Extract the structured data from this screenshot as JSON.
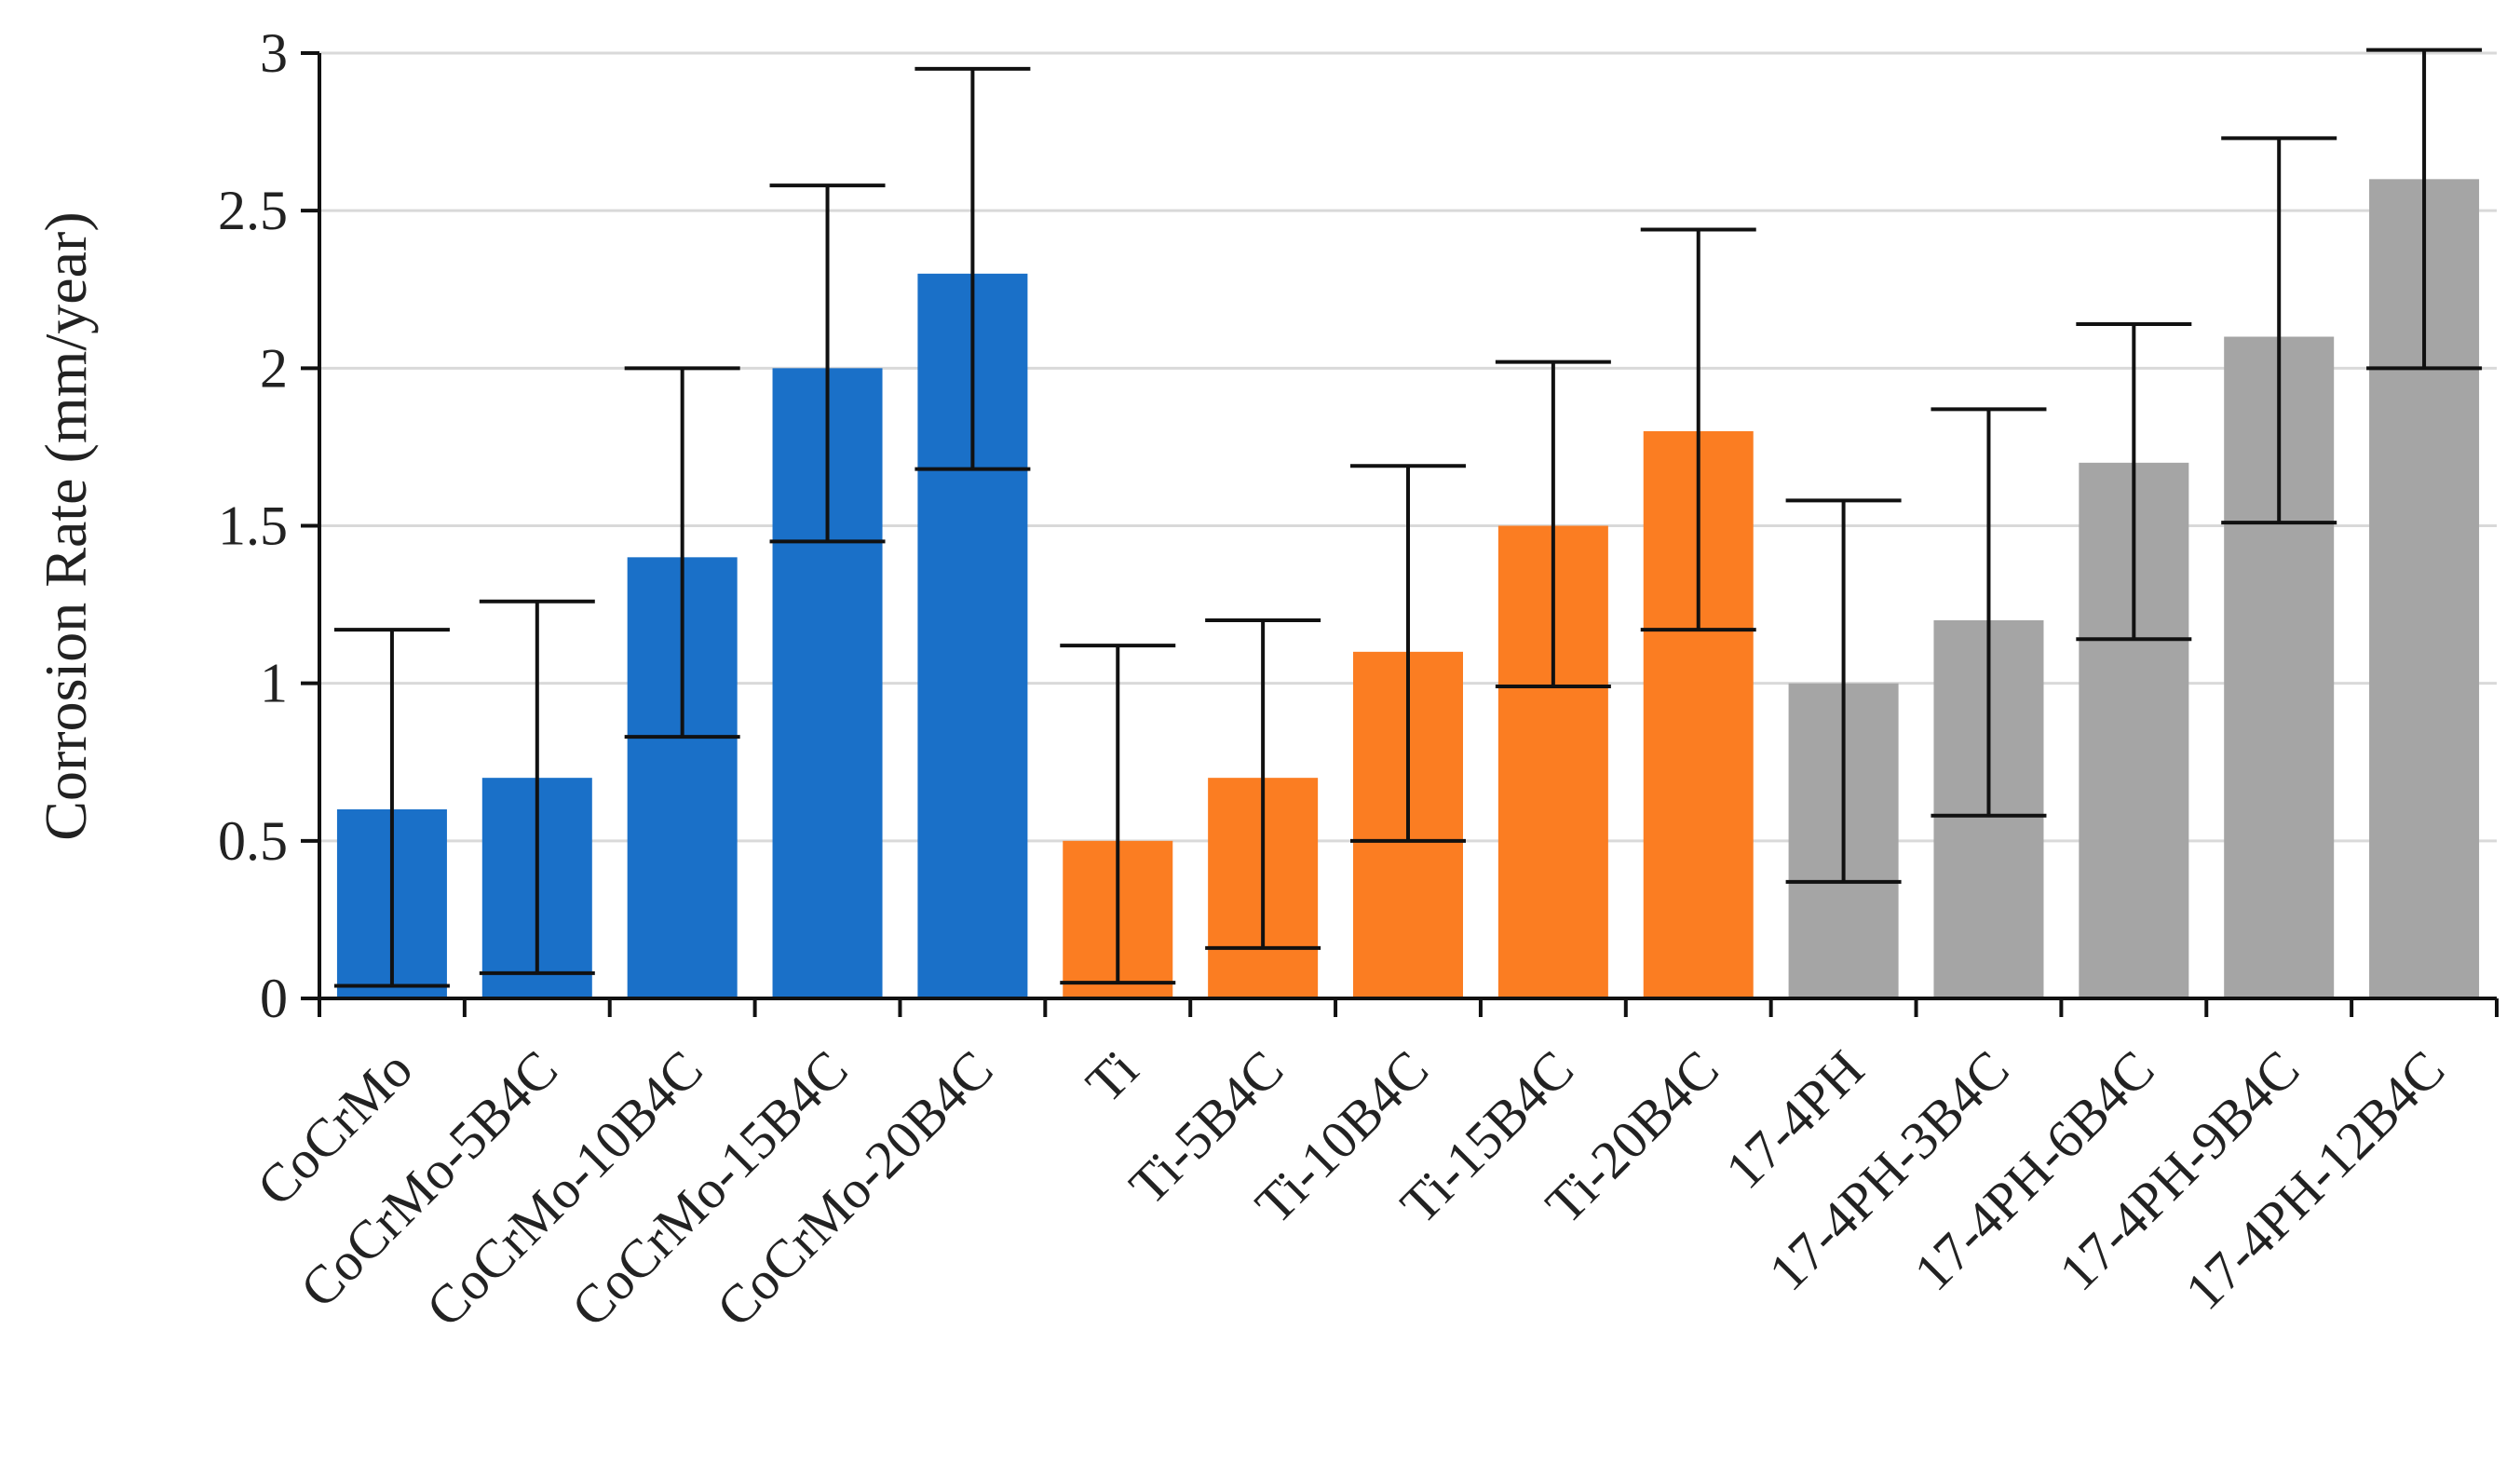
{
  "chart_data": {
    "type": "bar",
    "title": "",
    "xlabel": "",
    "ylabel": "Corrosion Rate (mm/year)",
    "ylim": [
      0,
      3
    ],
    "yticks": [
      "0",
      "0.5",
      "1",
      "1.5",
      "2",
      "2.5",
      "3"
    ],
    "grid": true,
    "legend": "none",
    "categories": [
      "CoCrMo",
      "CoCrMo-5B4C",
      "CoCrMo-10B4C",
      "CoCrMo-15B4C",
      "CoCrMo-20B4C",
      "Ti",
      "Ti-5B4C",
      "Ti-10B4C",
      "Ti-15B4C",
      "Ti-20B4C",
      "17-4PH",
      "17-4PH-3B4C",
      "17-4PH-6B4C",
      "17-4PH-9B4C",
      "17-4PH-12B4C"
    ],
    "values": [
      0.6,
      0.7,
      1.4,
      2.0,
      2.3,
      0.5,
      0.7,
      1.1,
      1.5,
      1.8,
      1.0,
      1.2,
      1.7,
      2.1,
      2.6
    ],
    "error_low": [
      0.04,
      0.08,
      0.83,
      1.45,
      1.68,
      0.05,
      0.16,
      0.5,
      0.99,
      1.17,
      0.37,
      0.58,
      1.14,
      1.51,
      2.0
    ],
    "error_high": [
      1.17,
      1.26,
      2.0,
      2.58,
      2.95,
      1.12,
      1.2,
      1.69,
      2.02,
      2.44,
      1.58,
      1.87,
      2.14,
      2.73,
      3.01
    ],
    "bar_colors": [
      "#1a70c8",
      "#1a70c8",
      "#1a70c8",
      "#1a70c8",
      "#1a70c8",
      "#fb7d22",
      "#fb7d22",
      "#fb7d22",
      "#fb7d22",
      "#fb7d22",
      "#a5a5a5",
      "#a5a5a5",
      "#a5a5a5",
      "#a5a5a5",
      "#a5a5a5"
    ],
    "grid_color": "#d9d9d9"
  }
}
